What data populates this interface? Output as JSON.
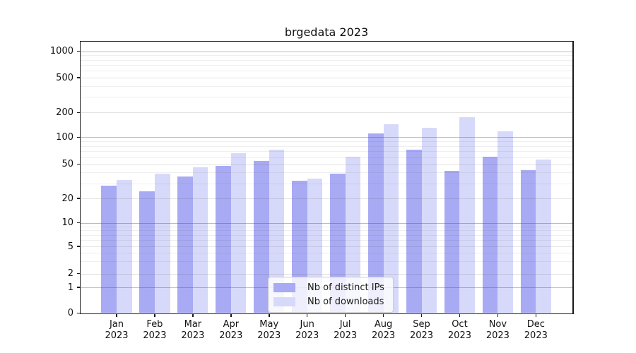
{
  "title": "brgedata 2023",
  "legend": {
    "items": [
      {
        "label": "Nb of distinct IPs",
        "color": "#a8aaf3"
      },
      {
        "label": "Nb of downloads",
        "color": "#d7d9fa"
      }
    ]
  },
  "y_axis": {
    "tick_values": [
      0,
      1,
      2,
      5,
      10,
      20,
      50,
      100,
      200,
      500,
      1000
    ],
    "tick_labels": [
      "0",
      "1",
      "2",
      "5",
      "10",
      "20",
      "50",
      "100",
      "200",
      "500",
      "1000"
    ]
  },
  "x_axis": {
    "tick_labels": [
      [
        "Jan",
        "2023"
      ],
      [
        "Feb",
        "2023"
      ],
      [
        "Mar",
        "2023"
      ],
      [
        "Apr",
        "2023"
      ],
      [
        "May",
        "2023"
      ],
      [
        "Jun",
        "2023"
      ],
      [
        "Jul",
        "2023"
      ],
      [
        "Aug",
        "2023"
      ],
      [
        "Sep",
        "2023"
      ],
      [
        "Oct",
        "2023"
      ],
      [
        "Nov",
        "2023"
      ],
      [
        "Dec",
        "2023"
      ]
    ]
  },
  "chart_data": {
    "type": "bar",
    "title": "brgedata 2023",
    "categories": [
      "Jan 2023",
      "Feb 2023",
      "Mar 2023",
      "Apr 2023",
      "May 2023",
      "Jun 2023",
      "Jul 2023",
      "Aug 2023",
      "Sep 2023",
      "Oct 2023",
      "Nov 2023",
      "Dec 2023"
    ],
    "series": [
      {
        "name": "Nb of distinct IPs",
        "color": "#a8aaf3",
        "values": [
          28,
          24,
          36,
          48,
          54,
          32,
          39,
          112,
          73,
          42,
          61,
          43
        ]
      },
      {
        "name": "Nb of downloads",
        "color": "#d7d9fa",
        "values": [
          33,
          39,
          46,
          66,
          73,
          34,
          61,
          145,
          130,
          175,
          118,
          56
        ]
      }
    ],
    "xlabel": "",
    "ylabel": "",
    "yscale": "asinh (log-like, linear near 0)",
    "y_ticks": [
      0,
      1,
      2,
      5,
      10,
      20,
      50,
      100,
      200,
      500,
      1000
    ],
    "ylim": [
      0,
      1270
    ],
    "grid": "both (dark lines at powers of 10, light lines at other ticks)",
    "legend_position": "lower center",
    "bar_group": "pairs side by side per month"
  }
}
